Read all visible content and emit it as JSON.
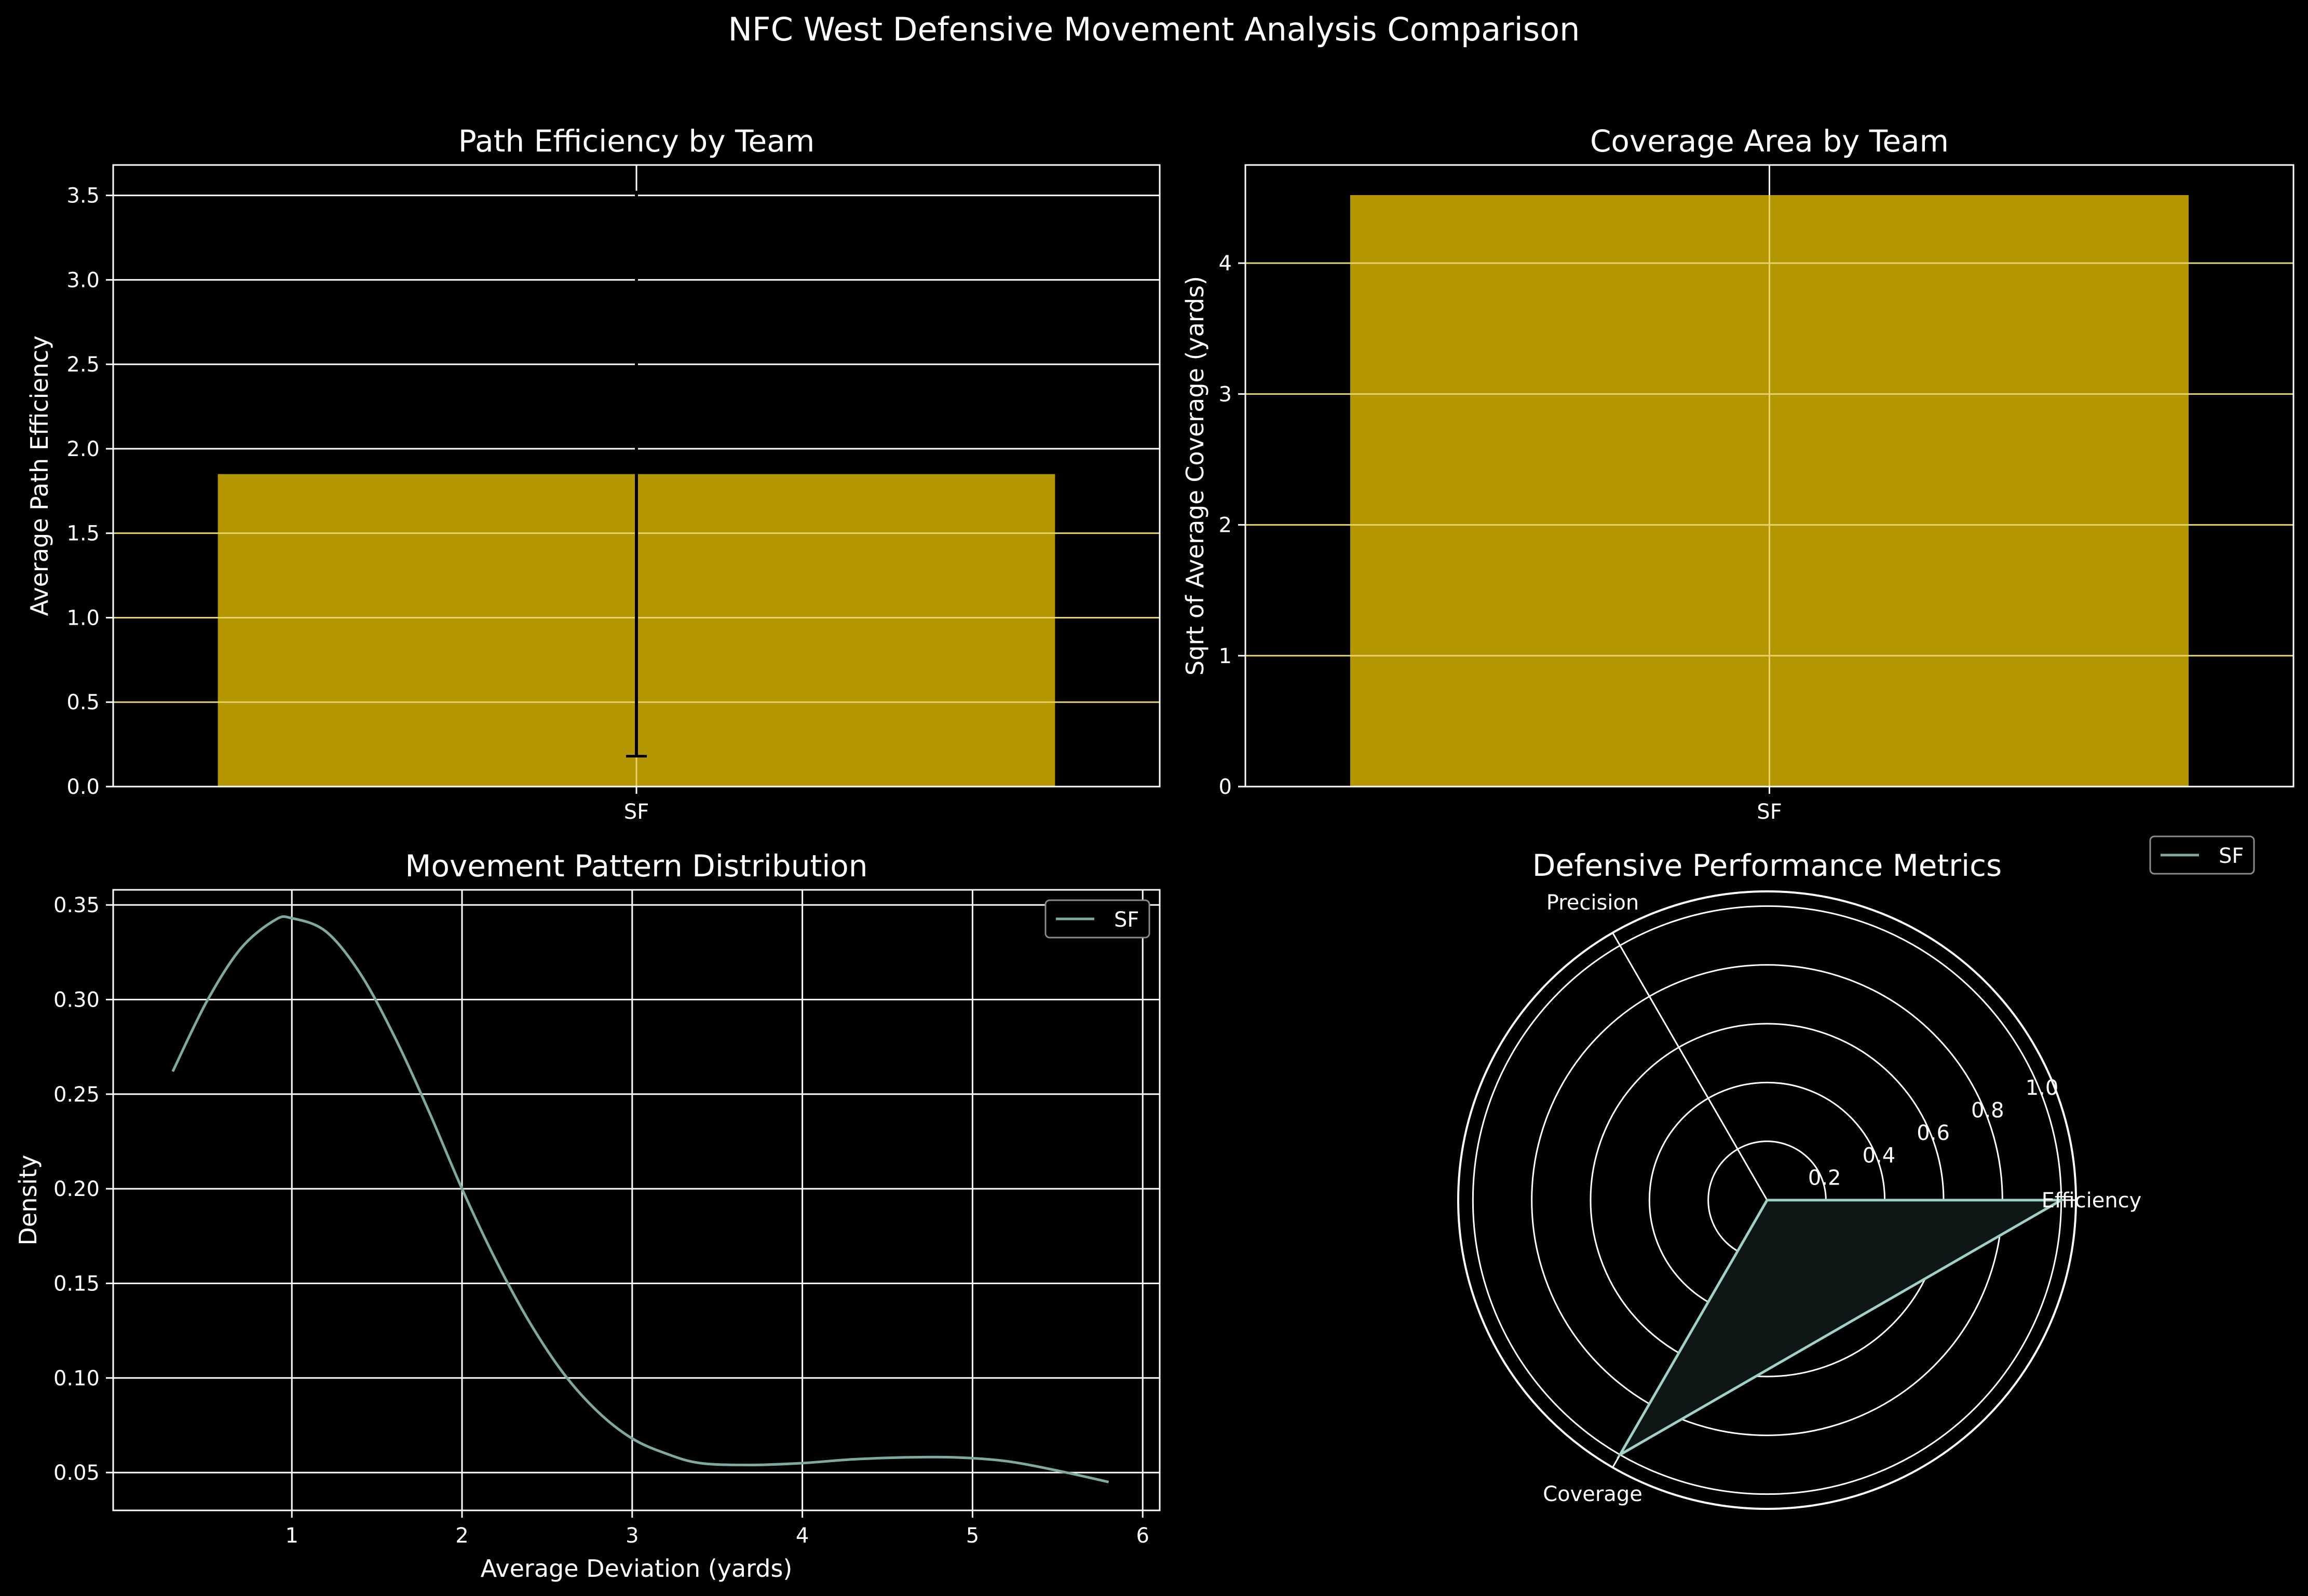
{
  "suptitle": "NFC West Defensive Movement Analysis Comparison",
  "colors": {
    "background": "#000000",
    "foreground": "#ffffff",
    "bar": "#b39600",
    "bar_grid": "#e6d36a",
    "series_line": "#7fa8a0",
    "radar_line": "#9fd1c8",
    "radar_fill": "#0e1716",
    "errorbar": "#000000"
  },
  "chart_data": [
    {
      "id": "path-efficiency",
      "type": "bar",
      "title": "Path Efficiency by Team",
      "xlabel": "",
      "ylabel": "Average Path Efficiency",
      "categories": [
        "SF"
      ],
      "values": [
        1.85
      ],
      "error": [
        {
          "lower": 0.18,
          "upper": 3.52
        }
      ],
      "ylim": [
        0,
        3.68
      ],
      "yticks": [
        0.0,
        0.5,
        1.0,
        1.5,
        2.0,
        2.5,
        3.0,
        3.5
      ],
      "ytick_labels": [
        "0.0",
        "0.5",
        "1.0",
        "1.5",
        "2.0",
        "2.5",
        "3.0",
        "3.5"
      ],
      "grid": true
    },
    {
      "id": "coverage-area",
      "type": "bar",
      "title": "Coverage Area by Team",
      "xlabel": "",
      "ylabel": "Sqrt of Average Coverage (yards)",
      "categories": [
        "SF"
      ],
      "values": [
        4.52
      ],
      "ylim": [
        0,
        4.75
      ],
      "yticks": [
        0,
        1,
        2,
        3,
        4
      ],
      "ytick_labels": [
        "0",
        "1",
        "2",
        "3",
        "4"
      ],
      "grid": true
    },
    {
      "id": "movement-distribution",
      "type": "line",
      "title": "Movement Pattern Distribution",
      "xlabel": "Average Deviation (yards)",
      "ylabel": "Density",
      "series": [
        {
          "name": "SF",
          "x": [
            0.3,
            0.5,
            0.7,
            0.9,
            1.0,
            1.2,
            1.4,
            1.6,
            1.8,
            2.0,
            2.2,
            2.4,
            2.6,
            2.8,
            3.0,
            3.2,
            3.4,
            3.7,
            4.0,
            4.3,
            4.6,
            4.9,
            5.2,
            5.5,
            5.8
          ],
          "y": [
            0.262,
            0.299,
            0.327,
            0.342,
            0.343,
            0.336,
            0.314,
            0.281,
            0.242,
            0.2,
            0.162,
            0.129,
            0.102,
            0.082,
            0.068,
            0.06,
            0.055,
            0.054,
            0.055,
            0.057,
            0.058,
            0.058,
            0.056,
            0.051,
            0.045
          ]
        }
      ],
      "xlim": [
        -0.05,
        6.1
      ],
      "ylim": [
        0.03,
        0.358
      ],
      "xticks": [
        1,
        2,
        3,
        4,
        5,
        6
      ],
      "xtick_labels": [
        "1",
        "2",
        "3",
        "4",
        "5",
        "6"
      ],
      "yticks": [
        0.05,
        0.1,
        0.15,
        0.2,
        0.25,
        0.3,
        0.35
      ],
      "ytick_labels": [
        "0.05",
        "0.10",
        "0.15",
        "0.20",
        "0.25",
        "0.30",
        "0.35"
      ],
      "legend": "top-right",
      "grid": true
    },
    {
      "id": "performance-radar",
      "type": "radar",
      "title": "Defensive Performance Metrics",
      "axes": [
        "Efficiency",
        "Precision",
        "Coverage"
      ],
      "series": [
        {
          "name": "SF",
          "values": [
            1.0,
            0.0,
            1.0
          ]
        }
      ],
      "rticks": [
        0.2,
        0.4,
        0.6,
        0.8,
        1.0
      ],
      "rtick_labels": [
        "0.2",
        "0.4",
        "0.6",
        "0.8",
        "1.0"
      ],
      "rlim": [
        0,
        1.05
      ],
      "legend": "top-right",
      "grid": true
    }
  ]
}
